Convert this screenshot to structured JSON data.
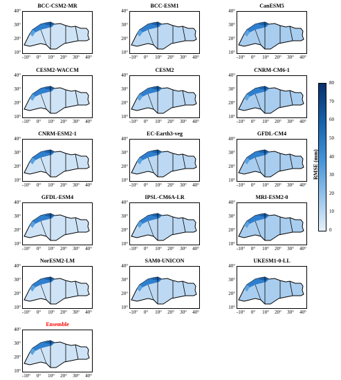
{
  "panels": [
    {
      "title": "BCC-CSM2-MR",
      "red": false
    },
    {
      "title": "BCC-ESM1",
      "red": false
    },
    {
      "title": "CanESM5",
      "red": false
    },
    {
      "title": "CESM2-WACCM",
      "red": false
    },
    {
      "title": "CESM2",
      "red": false
    },
    {
      "title": "CNRM-CM6-1",
      "red": false
    },
    {
      "title": "CNRM-ESM2-1",
      "red": false
    },
    {
      "title": "EC-Earth3-veg",
      "red": false
    },
    {
      "title": "GFDL-CM4",
      "red": false
    },
    {
      "title": "GFDL-ESM4",
      "red": false
    },
    {
      "title": "IPSL-CM6A-LR",
      "red": false
    },
    {
      "title": "MRI-ESM2-0",
      "red": false
    },
    {
      "title": "NorESM2-LM",
      "red": false
    },
    {
      "title": "SAM0-UNICON",
      "red": false
    },
    {
      "title": "UKESM1-0-LL",
      "red": false
    },
    {
      "title": "Ensemble",
      "red": true
    }
  ],
  "axes": {
    "y_ticks": [
      "40°",
      "30°",
      "20°",
      "10°"
    ],
    "x_ticks": [
      "-10°",
      "0°",
      "10°",
      "20°",
      "30°",
      "40°"
    ]
  },
  "colorbar": {
    "label": "RMSE (mm)",
    "ticks": [
      "80",
      "70",
      "60",
      "50",
      "40",
      "30",
      "20",
      "10",
      "0"
    ],
    "colors": {
      "low": "#e6f0fa",
      "mid": "#3d8fd6",
      "high": "#08306b"
    }
  }
}
